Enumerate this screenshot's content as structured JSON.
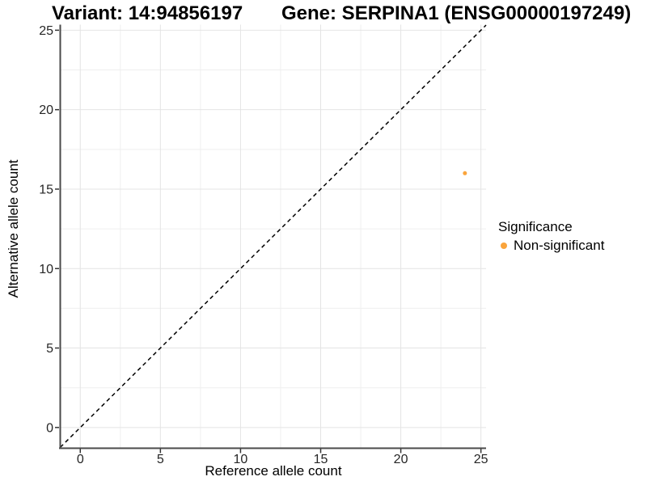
{
  "chart_data": {
    "type": "scatter",
    "titles": {
      "left": "Variant: 14:94856197",
      "right": "Gene: SERPINA1 (ENSG00000197249)"
    },
    "xlabel": "Reference allele count",
    "ylabel": "Alternative allele count",
    "x_ticks": [
      0,
      5,
      10,
      15,
      20,
      25
    ],
    "y_ticks": [
      0,
      5,
      10,
      15,
      20,
      25
    ],
    "x_minor_ticks": [
      2.5,
      7.5,
      12.5,
      17.5,
      22.5
    ],
    "y_minor_ticks": [
      2.5,
      7.5,
      12.5,
      17.5,
      22.5
    ],
    "xlim": [
      -1.25,
      25.32
    ],
    "ylim": [
      -1.28,
      25.35
    ],
    "grid": "major+minor",
    "identity_line": {
      "slope": 1,
      "intercept": 0,
      "style": "dashed",
      "color": "#000000"
    },
    "series": [
      {
        "name": "Non-significant",
        "color": "#FAA43B",
        "points": [
          {
            "x": 24,
            "y": 16
          }
        ]
      }
    ],
    "legend": {
      "title": "Significance",
      "position": "right-middle",
      "items": [
        {
          "label": "Non-significant",
          "color": "#FAA43B"
        }
      ]
    },
    "colors": {
      "grid_major": "#E4E4E4",
      "grid_minor": "#EFEFEF",
      "axis_line": "#4A4A4A",
      "tick": "#333333",
      "tick_label": "#262626"
    }
  }
}
